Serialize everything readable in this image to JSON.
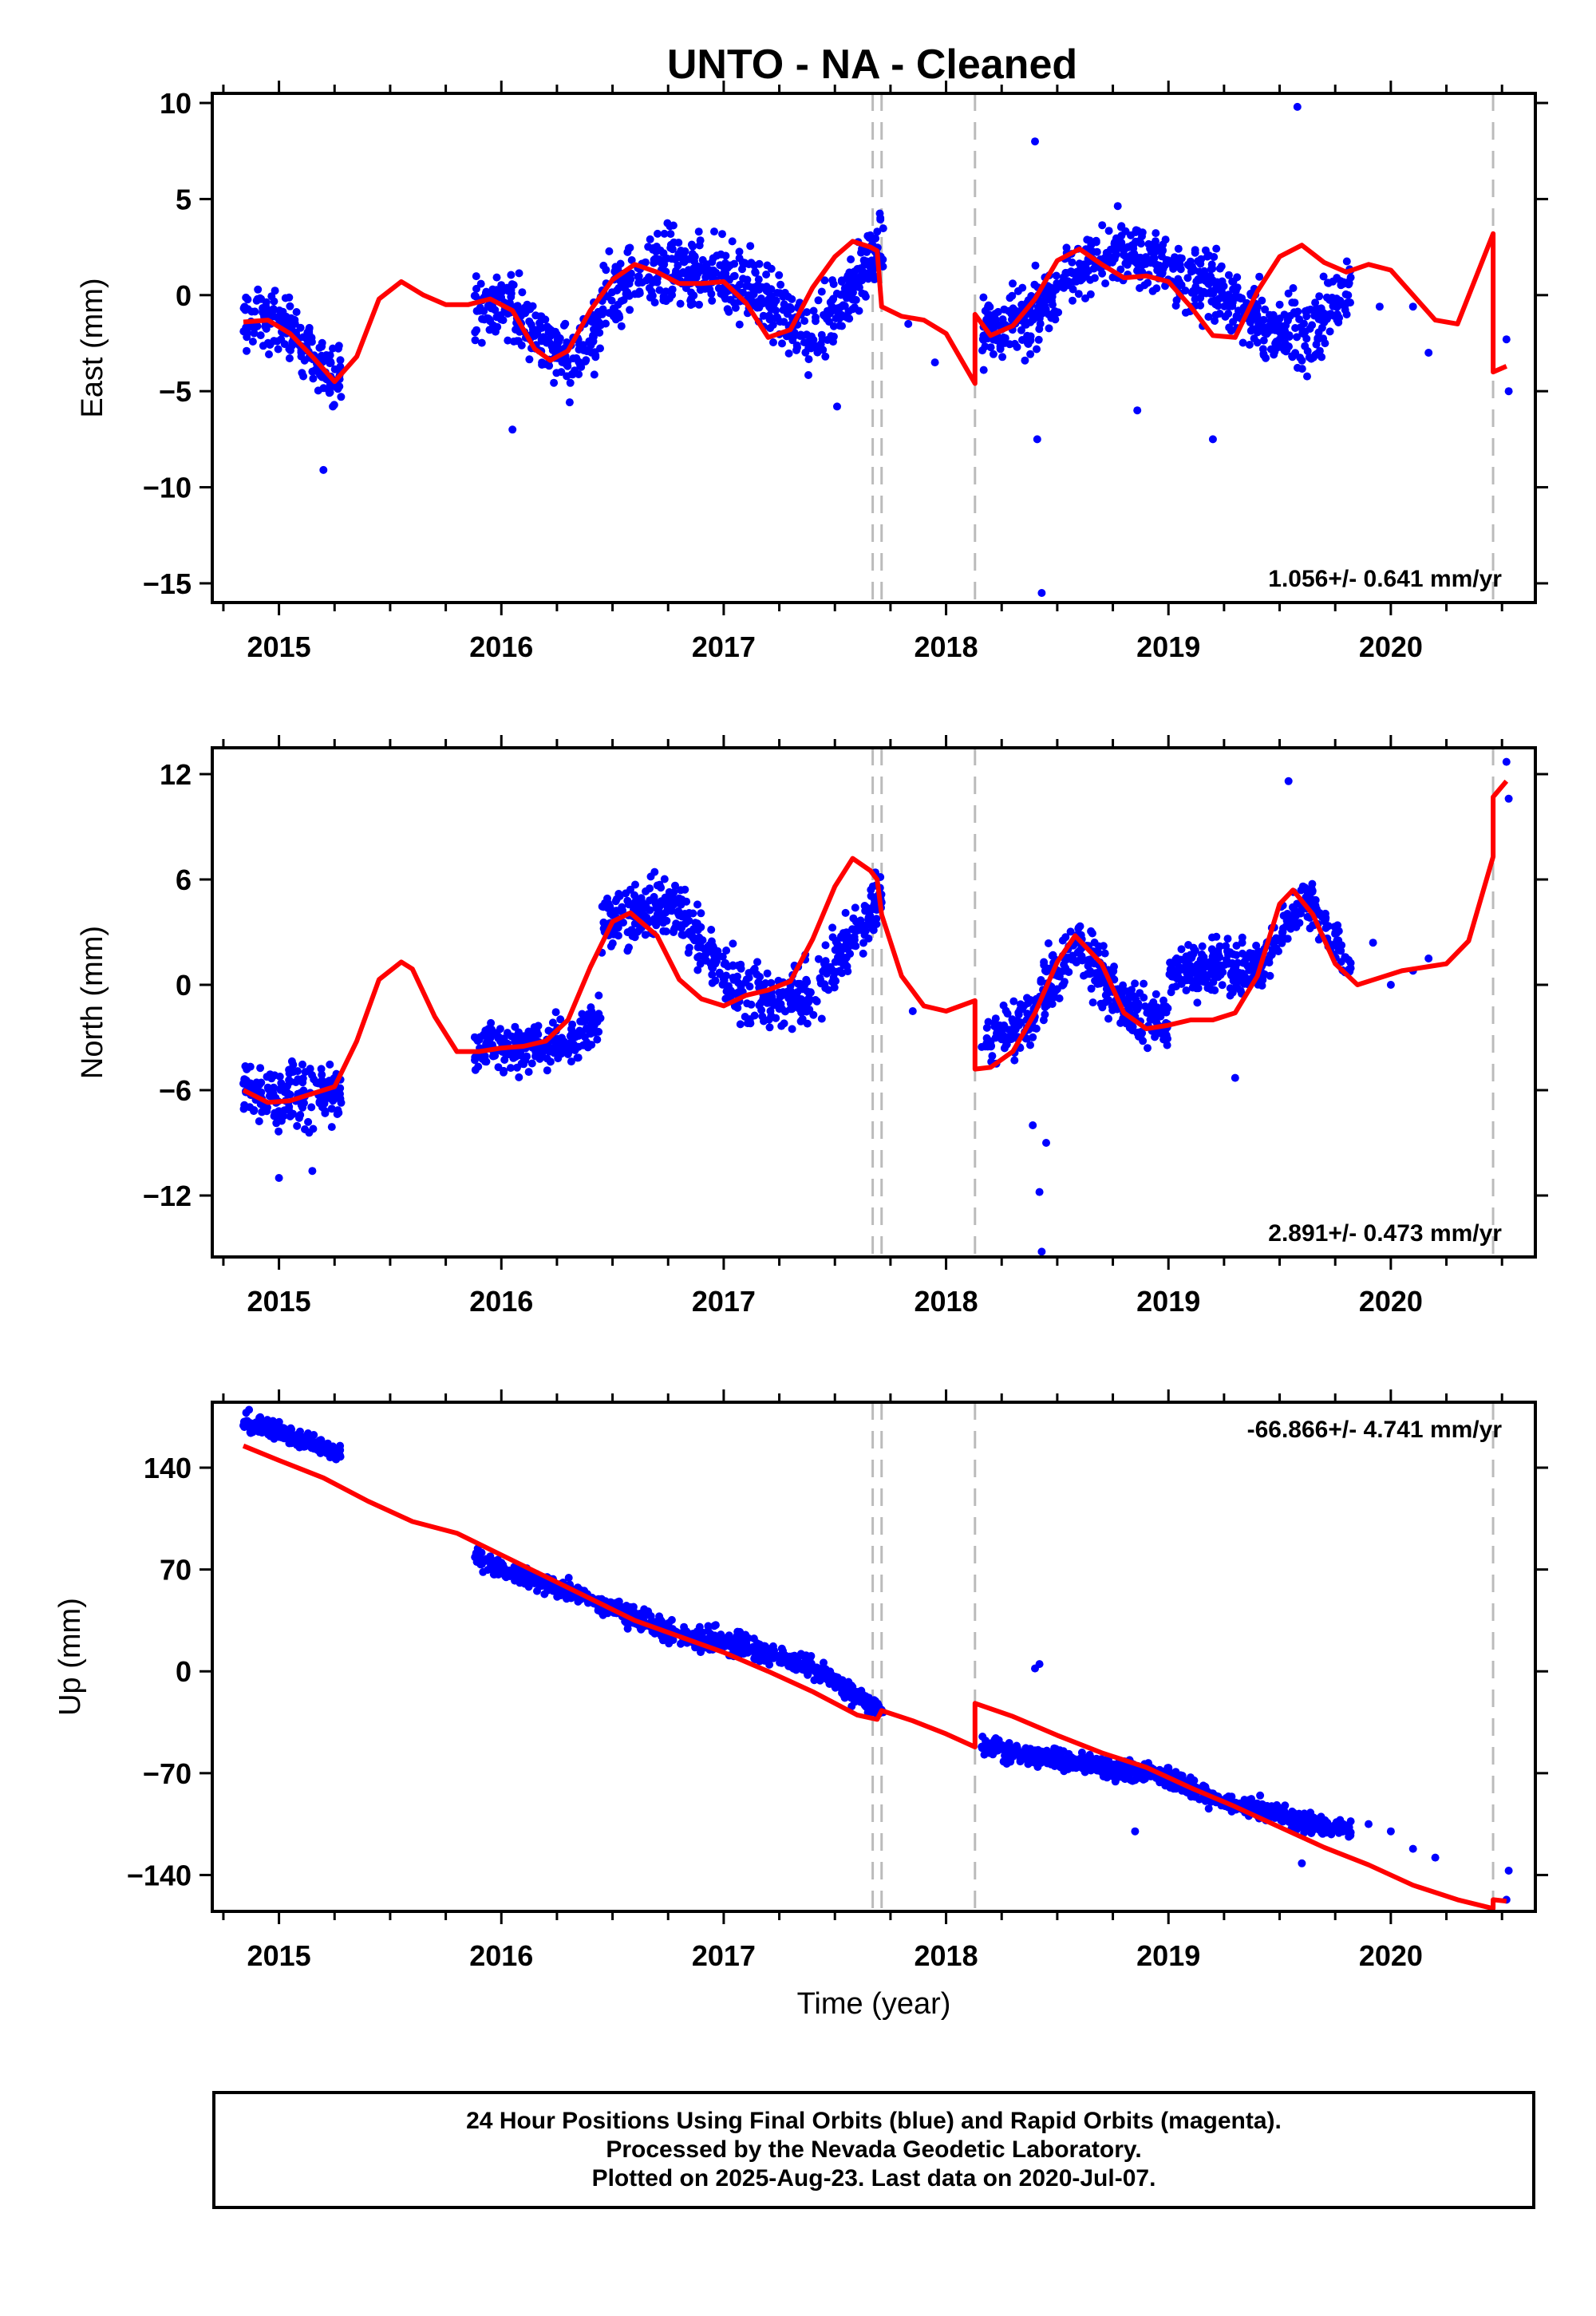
{
  "title": "UNTO  - NA - Cleaned",
  "footer": {
    "line1": "24 Hour Positions Using Final Orbits (blue) and Rapid Orbits (magenta).",
    "line2": "Processed by the Nevada Geodetic Laboratory.",
    "line3": "Plotted on 2025-Aug-23. Last data on 2020-Jul-07."
  },
  "colors": {
    "observations": "#0000ff",
    "model": "#ff0000",
    "steps": "#bbbbbb"
  },
  "chart_data": [
    {
      "type": "scatter",
      "ylabel": "East (mm)",
      "xlabel": "",
      "xlim": [
        2014.7,
        2020.65
      ],
      "ylim": [
        -16,
        10.5
      ],
      "yticks": [
        10,
        5,
        0,
        -5,
        -10,
        -15
      ],
      "xticks": [
        2015,
        2016,
        2017,
        2018,
        2019,
        2020
      ],
      "rate_label": "1.056+/- 0.641 mm/yr",
      "rate_position": "bottom-right",
      "step_epochs": [
        2017.67,
        2017.71,
        2018.13,
        2020.46
      ],
      "model": {
        "name": "",
        "x": [
          2014.84,
          2014.95,
          2015.05,
          2015.15,
          2015.25,
          2015.35,
          2015.45,
          2015.55,
          2015.65,
          2015.75,
          2015.85,
          2015.95,
          2016.05,
          2016.15,
          2016.22,
          2016.3,
          2016.4,
          2016.5,
          2016.6,
          2016.7,
          2016.8,
          2016.9,
          2017.0,
          2017.1,
          2017.2,
          2017.3,
          2017.4,
          2017.5,
          2017.58,
          2017.66,
          2017.69,
          2017.71,
          2017.8,
          2017.9,
          2018.0,
          2018.13,
          2018.13,
          2018.2,
          2018.3,
          2018.4,
          2018.5,
          2018.6,
          2018.7,
          2018.8,
          2018.9,
          2019.0,
          2019.1,
          2019.2,
          2019.3,
          2019.4,
          2019.5,
          2019.6,
          2019.7,
          2019.8,
          2019.9,
          2020.0,
          2020.1,
          2020.2,
          2020.3,
          2020.46,
          2020.46,
          2020.52
        ],
        "y": [
          -1.4,
          -1.3,
          -2.0,
          -3.2,
          -4.5,
          -3.2,
          -0.2,
          0.7,
          0.0,
          -0.5,
          -0.5,
          -0.2,
          -0.8,
          -2.8,
          -3.4,
          -2.9,
          -0.8,
          0.8,
          1.6,
          1.2,
          0.6,
          0.6,
          0.7,
          -0.4,
          -2.2,
          -1.8,
          0.4,
          2.0,
          2.8,
          2.5,
          2.3,
          -0.6,
          -1.1,
          -1.3,
          -2.0,
          -4.6,
          -1.0,
          -2.1,
          -1.6,
          -0.2,
          1.8,
          2.4,
          1.6,
          0.9,
          1.0,
          0.7,
          -0.6,
          -2.1,
          -2.2,
          0.2,
          2.0,
          2.6,
          1.7,
          1.2,
          1.6,
          1.3,
          0.0,
          -1.3,
          -1.5,
          3.2,
          -4.0,
          -3.7
        ]
      },
      "observations": {
        "name": "",
        "clusters": [
          [
            2014.84,
            2015.28,
            -1.3,
            -1.3,
            -2.0,
            -3.2,
            -4.5,
            1.4
          ],
          [
            2015.88,
            2016.45,
            -0.5,
            -0.6,
            -2.0,
            -3.4,
            -1.5,
            1.6
          ],
          [
            2016.45,
            2017.72,
            -0.2,
            1.6,
            0.6,
            -2.2,
            2.8,
            1.7
          ],
          [
            2018.16,
            2019.0,
            -2.0,
            -1.2,
            1.2,
            2.5,
            1.5,
            1.5
          ],
          [
            2019.0,
            2019.82,
            0.8,
            0.6,
            -1.5,
            -2.3,
            0.5,
            1.6
          ]
        ],
        "outliers": [
          [
            2018.4,
            8.0
          ],
          [
            2018.43,
            -15.5
          ],
          [
            2019.58,
            9.8
          ],
          [
            2018.41,
            -7.5
          ],
          [
            2017.51,
            -5.8
          ],
          [
            2018.86,
            -6.0
          ],
          [
            2015.2,
            -9.1
          ],
          [
            2016.05,
            -7.0
          ],
          [
            2019.2,
            -7.5
          ],
          [
            2019.95,
            -0.6
          ],
          [
            2020.1,
            -0.6
          ],
          [
            2020.17,
            -3.0
          ],
          [
            2020.52,
            -2.3
          ],
          [
            2020.53,
            -5.0
          ],
          [
            2017.95,
            -3.5
          ],
          [
            2017.83,
            -1.5
          ]
        ]
      }
    },
    {
      "type": "scatter",
      "ylabel": "North (mm)",
      "xlabel": "",
      "xlim": [
        2014.7,
        2020.65
      ],
      "ylim": [
        -15.5,
        13.5
      ],
      "yticks": [
        12,
        6,
        0,
        -6,
        -12
      ],
      "xticks": [
        2015,
        2016,
        2017,
        2018,
        2019,
        2020
      ],
      "rate_label": "2.891+/- 0.473 mm/yr",
      "rate_position": "bottom-right",
      "step_epochs": [
        2017.67,
        2017.71,
        2018.13,
        2020.46
      ],
      "model": {
        "name": "",
        "x": [
          2014.84,
          2014.95,
          2015.05,
          2015.15,
          2015.25,
          2015.35,
          2015.45,
          2015.55,
          2015.6,
          2015.7,
          2015.8,
          2015.9,
          2016.0,
          2016.1,
          2016.2,
          2016.3,
          2016.4,
          2016.5,
          2016.58,
          2016.7,
          2016.8,
          2016.9,
          2017.0,
          2017.1,
          2017.2,
          2017.3,
          2017.4,
          2017.5,
          2017.58,
          2017.66,
          2017.69,
          2017.71,
          2017.8,
          2017.9,
          2018.0,
          2018.13,
          2018.13,
          2018.2,
          2018.3,
          2018.4,
          2018.5,
          2018.58,
          2018.7,
          2018.8,
          2018.9,
          2019.0,
          2019.1,
          2019.2,
          2019.3,
          2019.4,
          2019.5,
          2019.56,
          2019.65,
          2019.75,
          2019.85,
          2019.95,
          2020.05,
          2020.15,
          2020.25,
          2020.35,
          2020.46,
          2020.46,
          2020.52
        ],
        "y": [
          -6.0,
          -6.7,
          -6.6,
          -6.2,
          -5.8,
          -3.2,
          0.3,
          1.3,
          0.9,
          -1.8,
          -3.8,
          -3.8,
          -3.6,
          -3.5,
          -3.2,
          -2.0,
          1.0,
          3.6,
          4.1,
          2.8,
          0.3,
          -0.8,
          -1.2,
          -0.6,
          -0.3,
          0.2,
          2.6,
          5.6,
          7.2,
          6.5,
          6.0,
          4.0,
          0.5,
          -1.2,
          -1.5,
          -0.9,
          -4.8,
          -4.7,
          -3.8,
          -1.6,
          1.3,
          2.8,
          1.2,
          -1.6,
          -2.5,
          -2.3,
          -2.0,
          -2.0,
          -1.6,
          0.5,
          4.6,
          5.4,
          4.0,
          1.2,
          0.0,
          0.4,
          0.8,
          1.0,
          1.2,
          2.5,
          7.3,
          10.7,
          11.6
        ]
      },
      "observations": {
        "name": "",
        "clusters": [
          [
            2014.84,
            2015.28,
            -5.5,
            -6.5,
            -6.3,
            -6.2,
            -5.8,
            1.6
          ],
          [
            2015.88,
            2016.45,
            -3.6,
            -3.6,
            -3.5,
            -3.2,
            -2.0,
            1.2
          ],
          [
            2016.45,
            2017.72,
            3.6,
            4.5,
            -0.5,
            -0.8,
            5.5,
            1.6
          ],
          [
            2018.16,
            2019.0,
            -3.5,
            -2.0,
            2.5,
            -1.0,
            -2.3,
            1.5
          ],
          [
            2019.0,
            2019.82,
            0.8,
            1.0,
            1.0,
            5.0,
            1.2,
            1.3
          ]
        ],
        "outliers": [
          [
            2018.42,
            -11.8
          ],
          [
            2018.45,
            -9.0
          ],
          [
            2018.43,
            -15.2
          ],
          [
            2018.39,
            -8.0
          ],
          [
            2019.54,
            11.6
          ],
          [
            2020.52,
            12.7
          ],
          [
            2020.53,
            10.6
          ],
          [
            2019.92,
            2.4
          ],
          [
            2020.0,
            0.0
          ],
          [
            2020.1,
            0.8
          ],
          [
            2020.17,
            1.5
          ],
          [
            2019.3,
            -5.3
          ],
          [
            2017.85,
            -1.5
          ],
          [
            2015.0,
            -11.0
          ],
          [
            2015.15,
            -10.6
          ]
        ]
      }
    },
    {
      "type": "scatter",
      "ylabel": "Up (mm)",
      "xlabel": "Time (year)",
      "xlim": [
        2014.7,
        2020.65
      ],
      "ylim": [
        -165,
        185
      ],
      "yticks": [
        140,
        70,
        0,
        -70,
        -140
      ],
      "xticks": [
        2015,
        2016,
        2017,
        2018,
        2019,
        2020
      ],
      "rate_label": "-66.866+/- 4.741 mm/yr",
      "rate_position": "top-right",
      "step_epochs": [
        2017.67,
        2017.71,
        2018.13,
        2020.46
      ],
      "model": {
        "name": "",
        "x": [
          2014.84,
          2015.0,
          2015.2,
          2015.4,
          2015.6,
          2015.8,
          2016.0,
          2016.2,
          2016.4,
          2016.6,
          2016.8,
          2017.0,
          2017.2,
          2017.4,
          2017.6,
          2017.69,
          2017.71,
          2017.85,
          2018.0,
          2018.13,
          2018.13,
          2018.3,
          2018.5,
          2018.7,
          2018.9,
          2019.1,
          2019.3,
          2019.5,
          2019.7,
          2019.9,
          2020.1,
          2020.3,
          2020.46,
          2020.46,
          2020.52
        ],
        "y": [
          155.0,
          145.0,
          133.0,
          117.0,
          103.0,
          95.0,
          80.0,
          65.0,
          50.0,
          35.0,
          24.0,
          13.0,
          0.0,
          -14.0,
          -30.0,
          -33.0,
          -27.0,
          -34.0,
          -43.0,
          -52.0,
          -22.0,
          -31.0,
          -44.0,
          -56.0,
          -66.0,
          -80.0,
          -93.0,
          -107.0,
          -121.0,
          -133.0,
          -147.0,
          -157.0,
          -163.0,
          -157.0,
          -158.0
        ]
      },
      "observations": {
        "name": "",
        "clusters": [
          [
            2014.84,
            2015.28,
            172.0,
            168.0,
            162.0,
            155.0,
            148.0,
            5.5
          ],
          [
            2015.88,
            2016.45,
            78.0,
            69.0,
            62.0,
            55.0,
            46.0,
            5.5
          ],
          [
            2016.45,
            2017.72,
            46.0,
            26.0,
            18.0,
            3.0,
            -30.0,
            7.0
          ],
          [
            2018.16,
            2019.0,
            -50.0,
            -58.0,
            -62.0,
            -68.0,
            -72.0,
            6.5
          ],
          [
            2019.0,
            2019.82,
            -72.0,
            -88.0,
            -94.0,
            -104.0,
            -110.0,
            6.0
          ]
        ],
        "outliers": [
          [
            2018.4,
            2.0
          ],
          [
            2018.42,
            5.0
          ],
          [
            2018.85,
            -110.0
          ],
          [
            2019.6,
            -132.0
          ],
          [
            2019.9,
            -105.0
          ],
          [
            2020.0,
            -110.0
          ],
          [
            2020.1,
            -122.0
          ],
          [
            2020.2,
            -128.0
          ],
          [
            2020.53,
            -137.0
          ],
          [
            2020.52,
            -157.0
          ]
        ]
      }
    }
  ]
}
